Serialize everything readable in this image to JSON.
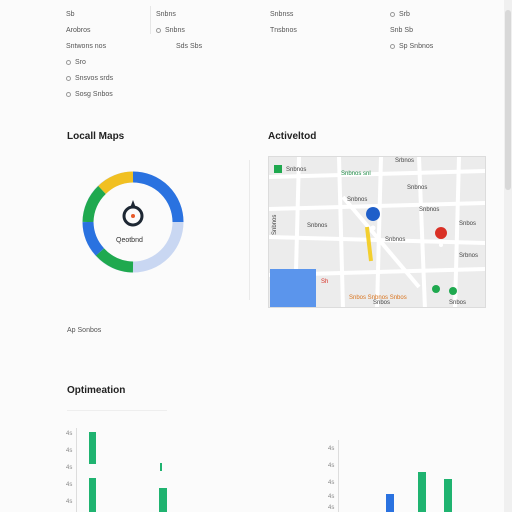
{
  "top_columns": [
    {
      "rows": [
        "Sb",
        "Arobros",
        "Sntwons nos",
        "Sro",
        "Snsvos srds",
        "Sosg Snbos"
      ]
    },
    {
      "rows": [
        "Snbns",
        "Snbns",
        "Sds Sbs"
      ]
    },
    {
      "rows": [
        "Snbnss",
        "Tnsbnos"
      ]
    },
    {
      "rows": [
        "Srb",
        "Snb Sb",
        "Sp Snbnos"
      ]
    }
  ],
  "local_maps": {
    "title": "Locall Maps",
    "donut_label": "Qeotbnd",
    "caption": "Ap Sonbos",
    "colors": {
      "blue": "#2a72e0",
      "green": "#1fa94f",
      "yellow": "#f1c021",
      "light": "#c9d7f2"
    }
  },
  "map": {
    "title": "Activeltod",
    "labels": [
      "Snbnos",
      "Snbnos snl",
      "Srbnos",
      "Snbnos",
      "Snbnos",
      "Snbnos",
      "Snbnos",
      "Snbnos",
      "Snbos",
      "Snbnos",
      "Snbos Snbnos Snbos",
      "Srbnos",
      "Snbos",
      "Snbos",
      "Sh"
    ]
  },
  "optimization": {
    "title": "Optimeation",
    "y_ticks_left": [
      "4s",
      "4s",
      "4s",
      "4s",
      "4s"
    ],
    "y_ticks_right": [
      "4s",
      "4s",
      "4s",
      "4s",
      "4s"
    ]
  }
}
